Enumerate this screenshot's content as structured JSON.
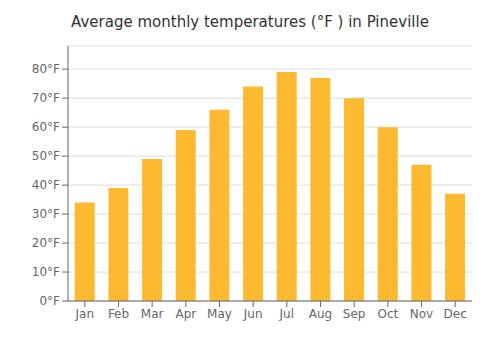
{
  "chart_data": {
    "type": "bar",
    "title": "Average monthly temperatures (°F ) in Pineville",
    "categories": [
      "Jan",
      "Feb",
      "Mar",
      "Apr",
      "May",
      "Jun",
      "Jul",
      "Aug",
      "Sep",
      "Oct",
      "Nov",
      "Dec"
    ],
    "values": [
      34,
      39,
      49,
      59,
      66,
      74,
      79,
      77,
      70,
      60,
      47,
      37
    ],
    "color": "#FDB930",
    "ylim": [
      0,
      88
    ],
    "yticks": [
      {
        "value": 0,
        "label": "0°F"
      },
      {
        "value": 10,
        "label": "10°F"
      },
      {
        "value": 20,
        "label": "20°F"
      },
      {
        "value": 30,
        "label": "30°F"
      },
      {
        "value": 40,
        "label": "40°F"
      },
      {
        "value": 50,
        "label": "50°F"
      },
      {
        "value": 60,
        "label": "60°F"
      },
      {
        "value": 70,
        "label": "70°F"
      },
      {
        "value": 80,
        "label": "80°F"
      }
    ],
    "grid": true
  }
}
